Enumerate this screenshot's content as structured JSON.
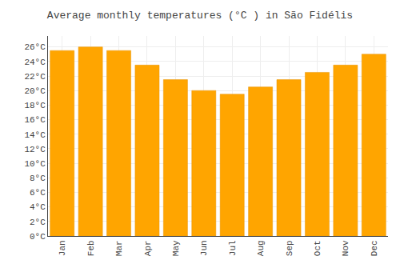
{
  "chart_data": {
    "type": "bar",
    "title": "Average monthly temperatures (°C ) in São Fidélis",
    "categories": [
      "Jan",
      "Feb",
      "Mar",
      "Apr",
      "May",
      "Jun",
      "Jul",
      "Aug",
      "Sep",
      "Oct",
      "Nov",
      "Dec"
    ],
    "values": [
      25.5,
      26.0,
      25.5,
      23.5,
      21.5,
      20.0,
      19.5,
      20.5,
      21.5,
      22.5,
      23.5,
      25.0
    ],
    "color": "#FFA500",
    "ylim": [
      0,
      27.5
    ],
    "yticks": [
      {
        "value": 0,
        "label": "0°C"
      },
      {
        "value": 2,
        "label": "2°C"
      },
      {
        "value": 4,
        "label": "4°C"
      },
      {
        "value": 6,
        "label": "6°C"
      },
      {
        "value": 8,
        "label": "8°C"
      },
      {
        "value": 10,
        "label": "10°C"
      },
      {
        "value": 12,
        "label": "12°C"
      },
      {
        "value": 14,
        "label": "14°C"
      },
      {
        "value": 16,
        "label": "16°C"
      },
      {
        "value": 18,
        "label": "18°C"
      },
      {
        "value": 20,
        "label": "20°C"
      },
      {
        "value": 22,
        "label": "22°C"
      },
      {
        "value": 24,
        "label": "24°C"
      },
      {
        "value": 26,
        "label": "26°C"
      }
    ],
    "grid": true
  }
}
